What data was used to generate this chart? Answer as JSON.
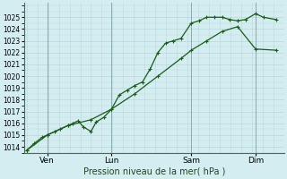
{
  "xlabel": "Pression niveau de la mer( hPa )",
  "background_color": "#d4edf0",
  "grid_color": "#b8d8dc",
  "line_color": "#1a5c1a",
  "ylim": [
    1013.5,
    1026.2
  ],
  "yticks": [
    1014,
    1015,
    1016,
    1017,
    1018,
    1019,
    1020,
    1021,
    1022,
    1023,
    1024,
    1025
  ],
  "xtick_labels": [
    "Ven",
    "Lun",
    "Sam",
    "Dim"
  ],
  "xtick_positions": [
    0.08,
    0.33,
    0.64,
    0.89
  ],
  "vline_positions": [
    0.08,
    0.33,
    0.64,
    0.89
  ],
  "series1_x": [
    0.0,
    0.03,
    0.06,
    0.08,
    0.11,
    0.13,
    0.16,
    0.18,
    0.2,
    0.22,
    0.25,
    0.27,
    0.3,
    0.33,
    0.36,
    0.39,
    0.42,
    0.45,
    0.48,
    0.51,
    0.54,
    0.57,
    0.6,
    0.64,
    0.67,
    0.7,
    0.73,
    0.76,
    0.79,
    0.82,
    0.85,
    0.89,
    0.92,
    0.97
  ],
  "series1_y": [
    1013.7,
    1014.3,
    1014.8,
    1015.0,
    1015.3,
    1015.5,
    1015.8,
    1016.0,
    1016.2,
    1015.7,
    1015.3,
    1016.1,
    1016.5,
    1017.2,
    1018.4,
    1018.8,
    1019.2,
    1019.5,
    1020.6,
    1022.0,
    1022.8,
    1023.0,
    1023.2,
    1024.5,
    1024.7,
    1025.0,
    1025.0,
    1025.0,
    1024.8,
    1024.7,
    1024.8,
    1025.3,
    1025.0,
    1024.8
  ],
  "series2_x": [
    0.0,
    0.08,
    0.16,
    0.25,
    0.33,
    0.42,
    0.51,
    0.6,
    0.64,
    0.7,
    0.76,
    0.82,
    0.89,
    0.97
  ],
  "series2_y": [
    1013.7,
    1015.0,
    1015.8,
    1016.3,
    1017.2,
    1018.5,
    1020.0,
    1021.5,
    1022.2,
    1023.0,
    1023.8,
    1024.2,
    1022.3,
    1022.2
  ],
  "figsize": [
    3.2,
    2.0
  ],
  "dpi": 100
}
